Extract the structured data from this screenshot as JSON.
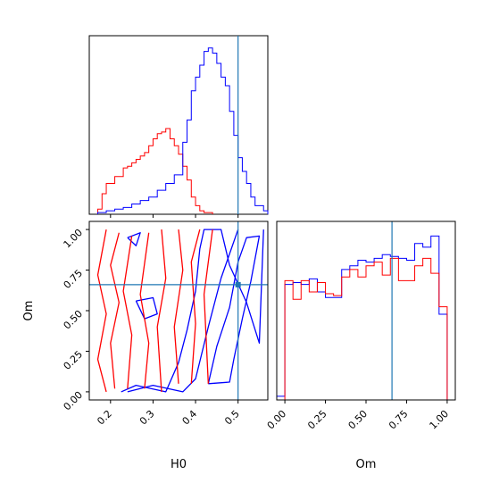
{
  "chart_data": [
    {
      "type": "histogram",
      "panel": "top-left",
      "xlim": [
        0.15,
        0.57
      ],
      "series": [
        {
          "color": "#ff0000",
          "step_edges": [
            0.17,
            0.18,
            0.19,
            0.2,
            0.21,
            0.22,
            0.23,
            0.24,
            0.25,
            0.26,
            0.27,
            0.28,
            0.29,
            0.3,
            0.31,
            0.32,
            0.33,
            0.34,
            0.35,
            0.36,
            0.37,
            0.38,
            0.39,
            0.4,
            0.41,
            0.42,
            0.43,
            0.44
          ],
          "counts": [
            0.03,
            0.12,
            0.18,
            0.18,
            0.22,
            0.22,
            0.27,
            0.28,
            0.3,
            0.32,
            0.34,
            0.36,
            0.4,
            0.44,
            0.47,
            0.48,
            0.5,
            0.44,
            0.4,
            0.35,
            0.28,
            0.2,
            0.1,
            0.05,
            0.02,
            0.01,
            0.01
          ]
        },
        {
          "color": "#0000ff",
          "step_edges": [
            0.17,
            0.19,
            0.21,
            0.23,
            0.25,
            0.27,
            0.29,
            0.31,
            0.33,
            0.35,
            0.37,
            0.38,
            0.39,
            0.4,
            0.41,
            0.42,
            0.43,
            0.44,
            0.45,
            0.46,
            0.47,
            0.48,
            0.49,
            0.5,
            0.51,
            0.52,
            0.53,
            0.54,
            0.55,
            0.56,
            0.57
          ],
          "counts": [
            0.01,
            0.02,
            0.03,
            0.04,
            0.06,
            0.08,
            0.1,
            0.14,
            0.18,
            0.23,
            0.42,
            0.55,
            0.72,
            0.8,
            0.87,
            0.95,
            0.97,
            0.94,
            0.88,
            0.8,
            0.75,
            0.6,
            0.46,
            0.33,
            0.25,
            0.18,
            0.1,
            0.05,
            0.05,
            0.02
          ]
        }
      ],
      "truth_x": 0.5
    },
    {
      "type": "contour",
      "panel": "bottom-left",
      "xlabel": "H0",
      "ylabel": "Om",
      "xlim": [
        0.15,
        0.57
      ],
      "ylim": [
        -0.05,
        1.05
      ],
      "xticks": [
        "0.2",
        "0.3",
        "0.4",
        "0.5"
      ],
      "yticks": [
        "0.00",
        "0.25",
        "0.50",
        "0.75",
        "1.00"
      ],
      "truth": [
        0.5,
        0.66
      ],
      "series": [
        {
          "color": "#0000ff",
          "contours": [
            [
              [
                0.225,
                0.0
              ],
              [
                0.26,
                0.04
              ],
              [
                0.33,
                0.0
              ],
              [
                0.36,
                0.18
              ],
              [
                0.38,
                0.38
              ],
              [
                0.4,
                0.62
              ],
              [
                0.41,
                0.88
              ],
              [
                0.42,
                1.0
              ],
              [
                0.46,
                1.0
              ],
              [
                0.48,
                0.78
              ],
              [
                0.52,
                0.55
              ],
              [
                0.55,
                0.3
              ],
              [
                0.56,
                1.0
              ]
            ],
            [
              [
                0.43,
                0.05
              ],
              [
                0.45,
                0.28
              ],
              [
                0.48,
                0.52
              ],
              [
                0.5,
                0.8
              ],
              [
                0.52,
                0.95
              ],
              [
                0.55,
                0.96
              ],
              [
                0.53,
                0.68
              ],
              [
                0.51,
                0.45
              ],
              [
                0.49,
                0.2
              ],
              [
                0.48,
                0.06
              ],
              [
                0.43,
                0.05
              ]
            ],
            [
              [
                0.24,
                0.0
              ],
              [
                0.3,
                0.04
              ],
              [
                0.37,
                0.0
              ],
              [
                0.4,
                0.08
              ],
              [
                0.43,
                0.4
              ],
              [
                0.46,
                0.7
              ],
              [
                0.5,
                1.0
              ]
            ],
            [
              [
                0.24,
                0.95
              ],
              [
                0.27,
                0.98
              ],
              [
                0.26,
                0.9
              ],
              [
                0.24,
                0.95
              ]
            ],
            [
              [
                0.26,
                0.56
              ],
              [
                0.3,
                0.58
              ],
              [
                0.31,
                0.48
              ],
              [
                0.28,
                0.45
              ],
              [
                0.26,
                0.56
              ]
            ]
          ]
        },
        {
          "color": "#ff0000",
          "contours": [
            [
              [
                0.19,
                0.0
              ],
              [
                0.17,
                0.2
              ],
              [
                0.19,
                0.48
              ],
              [
                0.17,
                0.72
              ],
              [
                0.19,
                1.0
              ]
            ],
            [
              [
                0.21,
                0.02
              ],
              [
                0.2,
                0.3
              ],
              [
                0.22,
                0.55
              ],
              [
                0.2,
                0.78
              ],
              [
                0.22,
                0.98
              ]
            ],
            [
              [
                0.24,
                0.02
              ],
              [
                0.25,
                0.35
              ],
              [
                0.23,
                0.62
              ],
              [
                0.25,
                0.96
              ]
            ],
            [
              [
                0.28,
                0.02
              ],
              [
                0.29,
                0.3
              ],
              [
                0.27,
                0.6
              ],
              [
                0.29,
                0.98
              ]
            ],
            [
              [
                0.32,
                0.0
              ],
              [
                0.31,
                0.4
              ],
              [
                0.33,
                0.7
              ],
              [
                0.32,
                1.0
              ]
            ],
            [
              [
                0.36,
                0.05
              ],
              [
                0.35,
                0.4
              ],
              [
                0.37,
                0.75
              ],
              [
                0.36,
                1.0
              ]
            ],
            [
              [
                0.39,
                0.05
              ],
              [
                0.4,
                0.42
              ],
              [
                0.39,
                0.8
              ],
              [
                0.41,
                1.0
              ]
            ],
            [
              [
                0.43,
                0.05
              ],
              [
                0.42,
                0.6
              ],
              [
                0.44,
                1.0
              ]
            ]
          ]
        }
      ]
    },
    {
      "type": "histogram",
      "panel": "bottom-right",
      "xlabel": "Om",
      "xlim": [
        -0.05,
        1.05
      ],
      "xticks": [
        "0.00",
        "0.25",
        "0.50",
        "0.75",
        "1.00"
      ],
      "truth_x": 0.66,
      "series": [
        {
          "color": "#0000ff",
          "step_edges": [
            -0.05,
            0.0,
            0.05,
            0.1,
            0.15,
            0.2,
            0.25,
            0.3,
            0.35,
            0.4,
            0.45,
            0.5,
            0.55,
            0.6,
            0.65,
            0.7,
            0.75,
            0.8,
            0.85,
            0.9,
            0.95,
            1.0
          ],
          "counts": [
            0.02,
            0.62,
            0.63,
            0.62,
            0.65,
            0.58,
            0.55,
            0.55,
            0.7,
            0.72,
            0.75,
            0.74,
            0.76,
            0.78,
            0.77,
            0.76,
            0.75,
            0.84,
            0.82,
            0.88,
            0.46
          ]
        },
        {
          "color": "#ff0000",
          "step_edges": [
            0.0,
            0.05,
            0.1,
            0.15,
            0.2,
            0.25,
            0.3,
            0.35,
            0.4,
            0.45,
            0.5,
            0.55,
            0.6,
            0.65,
            0.7,
            0.75,
            0.8,
            0.85,
            0.9,
            0.95,
            1.0
          ],
          "counts": [
            0.64,
            0.54,
            0.64,
            0.58,
            0.63,
            0.57,
            0.56,
            0.66,
            0.7,
            0.66,
            0.72,
            0.74,
            0.67,
            0.76,
            0.64,
            0.64,
            0.72,
            0.76,
            0.68,
            0.5
          ]
        }
      ]
    }
  ]
}
